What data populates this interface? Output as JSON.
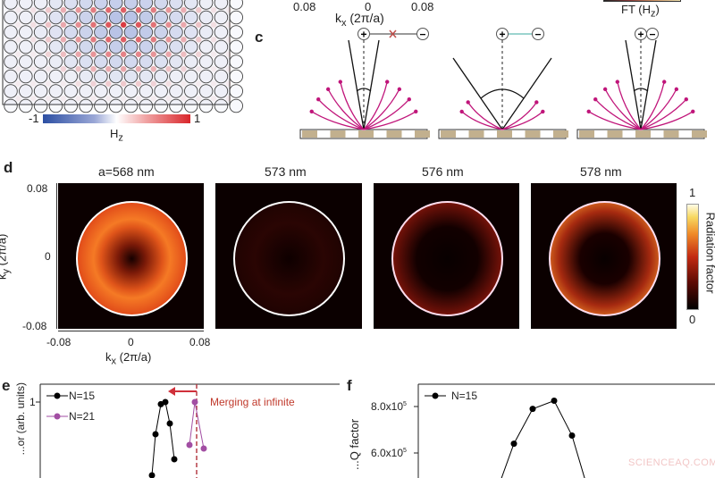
{
  "panel_a": {
    "colorbar": {
      "min_label": "-1",
      "max_label": "1",
      "label": "H",
      "label_sub": "z",
      "colors": [
        "#2c4fa3",
        "#ffffff",
        "#d9262b"
      ]
    }
  },
  "panel_b_partial": {
    "x_ticks": [
      "0.08",
      "0",
      "0.08"
    ],
    "xlabel": "k",
    "xlabel_sub": "x",
    "xlabel_rest": " (2π/a)",
    "colorbar_label": "FT (H",
    "colorbar_label_sub": "z",
    "colorbar_label_end": ")"
  },
  "panel_c": {
    "label": "c",
    "diagrams": [
      {
        "plus": "+",
        "minus": "−",
        "link": "crossed",
        "link_color": "#c0504d"
      },
      {
        "plus": "+",
        "minus": "−",
        "link": "connected",
        "link_color": "#3aa99f"
      },
      {
        "plus": "+",
        "minus": "−",
        "link": "merged"
      }
    ],
    "arrow_color": "#c0157a",
    "substrate_color": "#c2b08e"
  },
  "panel_d": {
    "label": "d",
    "titles": [
      "a=568 nm",
      "573 nm",
      "576 nm",
      "578 nm"
    ],
    "y_ticks": [
      "0.08",
      "0",
      "-0.08"
    ],
    "x_ticks": [
      "-0.08",
      "0",
      "0.08"
    ],
    "ylabel": "k",
    "ylabel_sub": "y",
    "ylabel_rest": " (2π/a)",
    "xlabel": "k",
    "xlabel_sub": "x",
    "xlabel_rest": " (2π/a)",
    "colorbar": {
      "label": "Radiation factor",
      "max_label": "1",
      "min_label": "0"
    }
  },
  "chart_data": [
    {
      "panel": "e",
      "type": "line",
      "ylabel": "...or (arb. units)",
      "y_ticks": [
        "1"
      ],
      "annotation": "Merging at infinite",
      "series": [
        {
          "name": "N=15",
          "color": "#000000",
          "x": [
            1,
            2,
            3,
            4,
            5,
            6
          ],
          "y": [
            0.1,
            0.55,
            0.97,
            1.0,
            0.7,
            0.2
          ]
        },
        {
          "name": "N=21",
          "color": "#a24ea3",
          "x": [
            7,
            8,
            9
          ],
          "y": [
            0.4,
            1.0,
            0.35
          ]
        }
      ]
    },
    {
      "panel": "f",
      "type": "line",
      "ylabel": "...Q factor",
      "y_ticks": [
        "8.0x10",
        "6.0x10"
      ],
      "y_tick_exp": "5",
      "series": [
        {
          "name": "N=15",
          "color": "#000000",
          "x": [
            1,
            2,
            3,
            4,
            5,
            6
          ],
          "y": [
            480000,
            640000,
            790000,
            825000,
            675000,
            480000
          ]
        }
      ]
    }
  ],
  "labels": {
    "e": "e",
    "f": "f"
  },
  "watermark": "SCIENCEAQ.COM"
}
